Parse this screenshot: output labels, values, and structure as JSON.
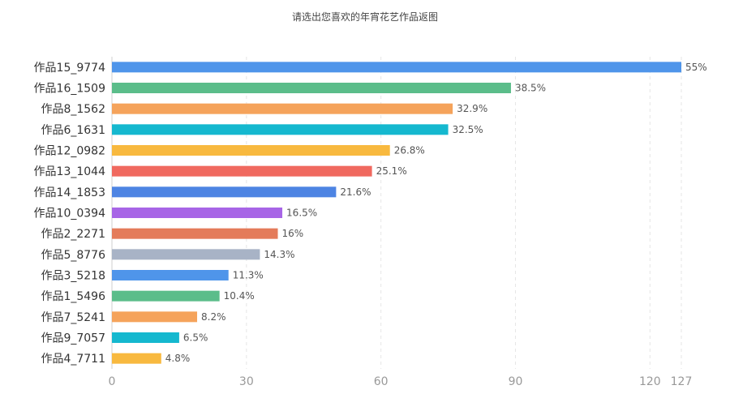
{
  "chart_data": {
    "type": "bar",
    "orientation": "horizontal",
    "title": "请选出您喜欢的年宵花艺作品返图",
    "xlim": [
      0,
      127
    ],
    "x_ticks": [
      0,
      30,
      60,
      90,
      120,
      127
    ],
    "grid": true,
    "legend": "none",
    "unit_suffix": "%",
    "categories": [
      "作品15_9774",
      "作品16_1509",
      "作品8_1562",
      "作品6_1631",
      "作品12_0982",
      "作品13_1044",
      "作品14_1853",
      "作品10_0394",
      "作品2_2271",
      "作品5_8776",
      "作品3_5218",
      "作品1_5496",
      "作品7_5241",
      "作品9_7057",
      "作品4_7711"
    ],
    "values": [
      127,
      89,
      76,
      75,
      62,
      58,
      50,
      38,
      37,
      33,
      26,
      24,
      19,
      15,
      11
    ],
    "percent_labels": [
      "55%",
      "38.5%",
      "32.9%",
      "32.5%",
      "26.8%",
      "25.1%",
      "21.6%",
      "16.5%",
      "16%",
      "14.3%",
      "11.3%",
      "10.4%",
      "8.2%",
      "6.5%",
      "4.8%"
    ],
    "colors": [
      "#4f95ea",
      "#5bbd8a",
      "#f5a35b",
      "#15b8cf",
      "#f8b93f",
      "#f0695f",
      "#4d84e3",
      "#a765e6",
      "#e47b5a",
      "#a8b3c6",
      "#4f95ea",
      "#5bbd8a",
      "#f5a35b",
      "#15b8cf",
      "#f8b93f"
    ]
  }
}
